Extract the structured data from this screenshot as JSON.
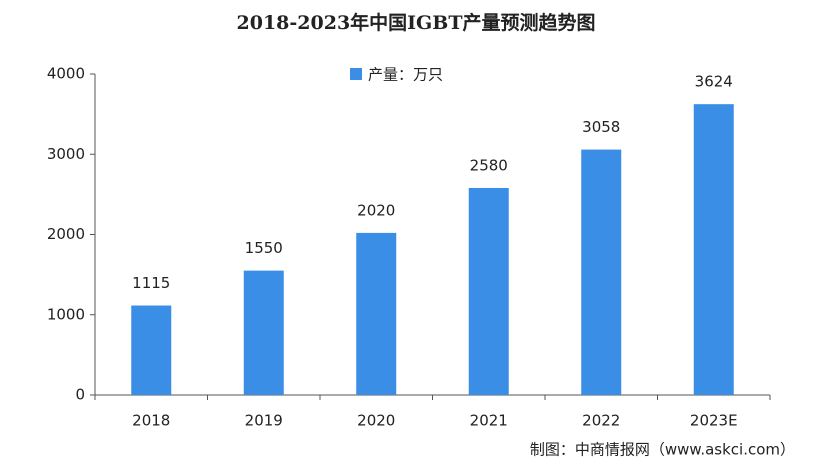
{
  "chart_data": {
    "type": "bar",
    "title": "2018-2023年中国IGBT产量预测趋势图",
    "categories": [
      "2018",
      "2019",
      "2020",
      "2021",
      "2022",
      "2023E"
    ],
    "series": [
      {
        "name": "产量：万只",
        "color": "#3a8ee6",
        "values": [
          1115,
          1550,
          2020,
          2580,
          3058,
          3624
        ]
      }
    ],
    "ylim": [
      0,
      4000
    ],
    "yticks": [
      0,
      1000,
      2000,
      3000,
      4000
    ],
    "source": "制图：中商情报网（www.askci.com）"
  }
}
